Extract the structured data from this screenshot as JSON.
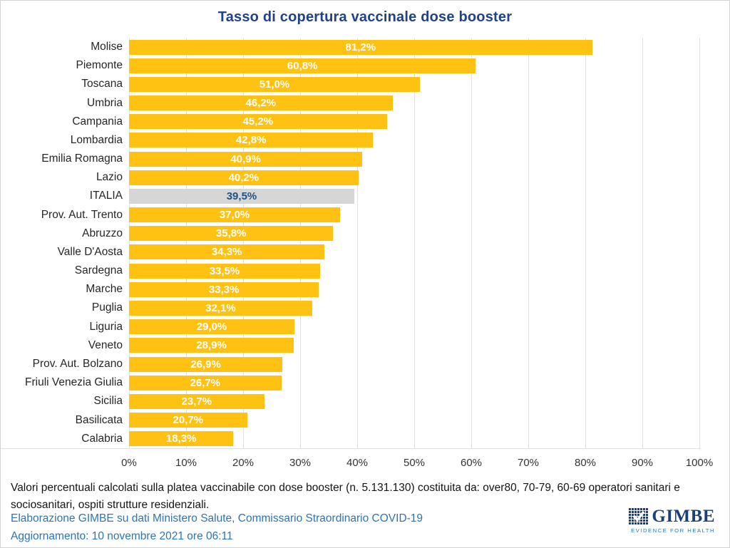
{
  "chart_data": {
    "type": "bar",
    "orientation": "horizontal",
    "title": "Tasso di copertura vaccinale dose booster",
    "categories": [
      "Molise",
      "Piemonte",
      "Toscana",
      "Umbria",
      "Campania",
      "Lombardia",
      "Emilia Romagna",
      "Lazio",
      "ITALIA",
      "Prov. Aut. Trento",
      "Abruzzo",
      "Valle D'Aosta",
      "Sardegna",
      "Marche",
      "Puglia",
      "Liguria",
      "Veneto",
      "Prov. Aut. Bolzano",
      "Friuli Venezia Giulia",
      "Sicilia",
      "Basilicata",
      "Calabria"
    ],
    "values": [
      81.2,
      60.8,
      51.0,
      46.2,
      45.2,
      42.8,
      40.9,
      40.2,
      39.5,
      37.0,
      35.8,
      34.3,
      33.5,
      33.3,
      32.1,
      29.0,
      28.9,
      26.9,
      26.7,
      23.7,
      20.7,
      18.3
    ],
    "value_labels": [
      "81,2%",
      "60,8%",
      "51,0%",
      "46,2%",
      "45,2%",
      "42,8%",
      "40,9%",
      "40,2%",
      "39,5%",
      "37,0%",
      "35,8%",
      "34,3%",
      "33,5%",
      "33,3%",
      "32,1%",
      "29,0%",
      "28,9%",
      "26,9%",
      "26,7%",
      "23,7%",
      "20,7%",
      "18,3%"
    ],
    "highlight_category": "ITALIA",
    "x_ticks": [
      "0%",
      "10%",
      "20%",
      "30%",
      "40%",
      "50%",
      "60%",
      "70%",
      "80%",
      "90%",
      "100%"
    ],
    "xlim": [
      0,
      100
    ],
    "grid": "vertical",
    "legend": "none",
    "colors": {
      "bar": "#ffc112",
      "highlight_bar": "#d6d6d6",
      "value_label": "#ffffff",
      "highlight_value_label": "#1f5287",
      "title": "#1f4289",
      "gridline": "#e3e3e3"
    }
  },
  "footnote": "Valori percentuali calcolati sulla platea vaccinabile con dose booster (n. 5.131.130) costituita da: over80, 70-79, 60-69 operatori sanitari e sociosanitari, ospiti strutture residenziali.",
  "credits": {
    "source": "Elaborazione GIMBE su dati Ministero Salute, Commissario Straordinario COVID-19",
    "update": "Aggiornamento: 10 novembre 2021 ore 06:11",
    "color": "#2e74b5"
  },
  "logo": {
    "name": "GIMBE",
    "tagline": "EVIDENCE FOR HEALTH",
    "color": "#1b3f7a"
  }
}
